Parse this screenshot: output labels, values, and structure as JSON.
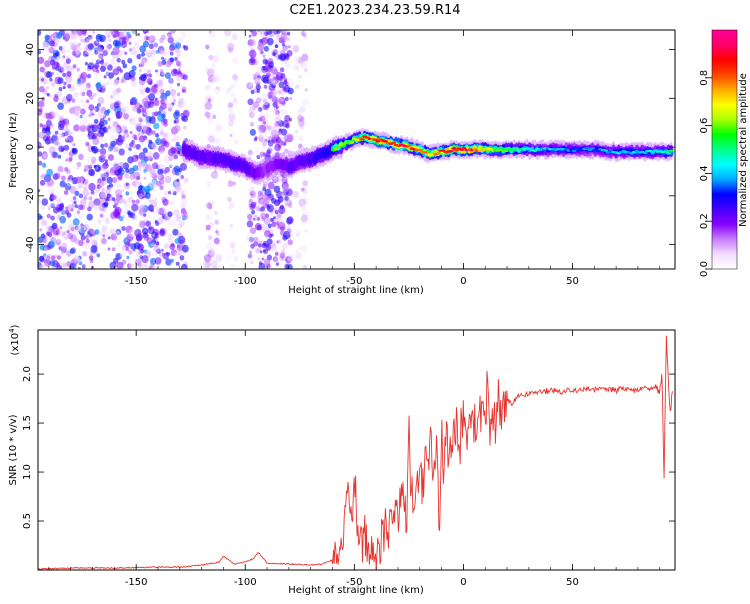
{
  "title": "C2E1.2023.234.23.59.R14",
  "chart_data": [
    {
      "type": "heatmap",
      "xlabel": "Height of straight line (km)",
      "ylabel": "Frequency (Hz)",
      "xlim": [
        -195,
        97
      ],
      "ylim": [
        -50,
        48
      ],
      "xticks": [
        -150,
        -100,
        -50,
        0,
        50
      ],
      "yticks": [
        -40,
        -20,
        0,
        20,
        40
      ],
      "colorbar": {
        "label": "Normalized spectral amplitude",
        "range": [
          0,
          1
        ],
        "ticks": [
          "0.0",
          "0.2",
          "0.4",
          "0.6",
          "0.8"
        ],
        "colors": [
          "#ffffff",
          "#f3dcff",
          "#c77dff",
          "#8800ff",
          "#4400ff",
          "#0000ff",
          "#00aaff",
          "#00ffff",
          "#00ff88",
          "#00ff00",
          "#aaff00",
          "#ffff00",
          "#ffaa00",
          "#ff4400",
          "#ff0000",
          "#ff0066",
          "#ff0099"
        ]
      },
      "noise_region_km": [
        -195,
        -127
      ],
      "secondary_noise_region_km": [
        -98,
        -79
      ],
      "ridge": {
        "x": [
          -128,
          -120,
          -110,
          -100,
          -95,
          -90,
          -85,
          -80,
          -75,
          -70,
          -65,
          -60,
          -55,
          -50,
          -45,
          -40,
          -35,
          -30,
          -25,
          -20,
          -15,
          -10,
          -5,
          0,
          5,
          10,
          20,
          30,
          40,
          50,
          60,
          70,
          80,
          90,
          96
        ],
        "y": [
          -1,
          -4,
          -5,
          -8,
          -11,
          -9,
          -7,
          -8,
          -6,
          -5,
          -3,
          -1,
          1,
          3,
          4,
          3,
          2,
          1,
          0,
          -1,
          -3,
          -2,
          -1,
          -1,
          -1,
          -1,
          -1,
          -1,
          -1,
          -1,
          -1,
          -2,
          -2,
          -2,
          -2
        ],
        "peak_amplitude": [
          0.45,
          0.4,
          0.45,
          0.45,
          0.35,
          0.3,
          0.35,
          0.4,
          0.4,
          0.45,
          0.5,
          0.55,
          0.6,
          0.65,
          0.8,
          0.9,
          0.85,
          0.9,
          0.85,
          0.8,
          0.7,
          0.85,
          0.9,
          0.9,
          0.85,
          0.7,
          0.55,
          0.45,
          0.4,
          0.35,
          0.35,
          0.4,
          0.4,
          0.45,
          0.5
        ]
      }
    },
    {
      "type": "line",
      "xlabel": "Height of straight line (km)",
      "ylabel": "SNR (10 * v/v)",
      "scale_note": "(x10",
      "scale_exp": "4",
      "scale_close": ")",
      "xlim": [
        -195,
        97
      ],
      "ylim": [
        0,
        2.45
      ],
      "xticks": [
        -150,
        -100,
        -50,
        0,
        50
      ],
      "yticks": [
        "0.5",
        "1.0",
        "1.5",
        "2.0"
      ],
      "series": [
        {
          "color": "#e8342e",
          "x": [
            -195,
            -180,
            -160,
            -140,
            -130,
            -120,
            -112,
            -110,
            -105,
            -100,
            -96,
            -94,
            -90,
            -80,
            -70,
            -65,
            -60,
            -57,
            -55,
            -53,
            -51,
            -50,
            -49,
            -48,
            -47,
            -46,
            -45,
            -44,
            -42,
            -40,
            -38,
            -36,
            -34,
            -32,
            -30,
            -28,
            -26,
            -25,
            -24,
            -22,
            -20,
            -18,
            -17,
            -16,
            -15,
            -14,
            -12,
            -11,
            -10,
            -9,
            -8,
            -6,
            -4,
            -2,
            0,
            2,
            4,
            6,
            8,
            10,
            11,
            12,
            14,
            16,
            18,
            20,
            22,
            25,
            30,
            35,
            40,
            45,
            50,
            55,
            60,
            65,
            70,
            75,
            80,
            85,
            88,
            90,
            91,
            92,
            93,
            94,
            95,
            96
          ],
          "y": [
            0.01,
            0.02,
            0.02,
            0.03,
            0.03,
            0.05,
            0.08,
            0.14,
            0.06,
            0.08,
            0.12,
            0.18,
            0.07,
            0.06,
            0.05,
            0.06,
            0.1,
            0.18,
            0.3,
            0.85,
            0.4,
            1.1,
            0.45,
            0.3,
            0.5,
            0.2,
            0.35,
            0.15,
            0.25,
            0.1,
            0.3,
            0.55,
            0.35,
            0.7,
            0.5,
            0.9,
            0.6,
            1.65,
            0.8,
            0.65,
            1.0,
            0.8,
            1.3,
            0.9,
            1.7,
            1.0,
            1.2,
            0.45,
            1.4,
            1.05,
            1.45,
            1.2,
            1.5,
            1.3,
            1.55,
            1.35,
            1.6,
            1.4,
            1.7,
            1.5,
            2.05,
            1.4,
            1.55,
            1.7,
            1.6,
            1.75,
            1.7,
            1.78,
            1.8,
            1.82,
            1.83,
            1.82,
            1.84,
            1.83,
            1.85,
            1.84,
            1.84,
            1.85,
            1.84,
            1.86,
            1.85,
            1.82,
            2.0,
            0.9,
            2.45,
            1.9,
            1.6,
            1.85
          ]
        }
      ]
    }
  ]
}
